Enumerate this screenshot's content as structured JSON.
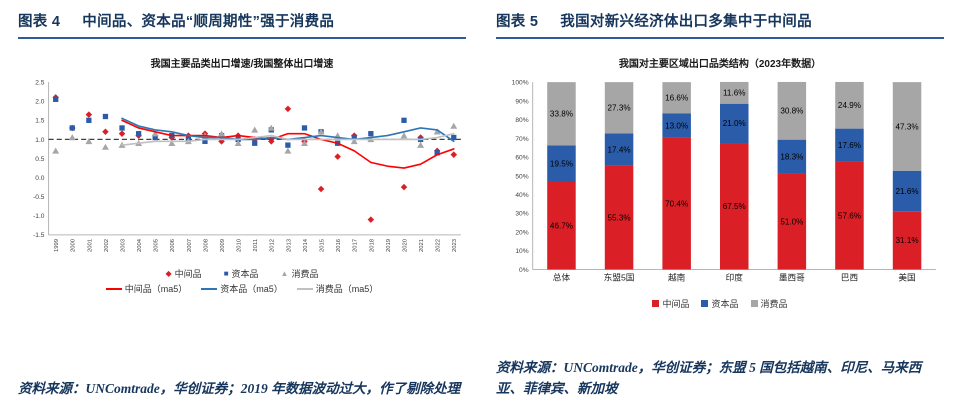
{
  "theme": {
    "header_color": "#16365c",
    "rule_color": "#2f5b9d",
    "source_color": "#17365d",
    "axis_color": "#b7b7b7",
    "reference_line_color": "#404040"
  },
  "figure4": {
    "label": "图表 4",
    "title": "中间品、资本品“顺周期性”强于消费品",
    "source": "资料来源：UNComtrade，华创证券；2019 年数据波动过大，作了剔除处理"
  },
  "figure5": {
    "label": "图表 5",
    "title": "我国对新兴经济体出口多集中于中间品",
    "source": "资料来源：UNComtrade，华创证券；东盟 5 国包括越南、印尼、马来西亚、菲律宾、新加坡"
  },
  "chart_data": [
    {
      "type": "scatter",
      "title": "我国主要品类出口增速/我国整体出口增速",
      "x": [
        1999,
        2000,
        2001,
        2002,
        2003,
        2004,
        2005,
        2006,
        2007,
        2008,
        2009,
        2010,
        2011,
        2012,
        2013,
        2014,
        2015,
        2016,
        2017,
        2018,
        2019,
        2020,
        2021,
        2022,
        2023
      ],
      "ylim": [
        -1.5,
        2.5
      ],
      "ytick_step": 0.5,
      "reference_line": 1.0,
      "series": [
        {
          "name": "中间品",
          "marker": "diamond",
          "color": "#db1f26",
          "values": [
            2.1,
            1.3,
            1.65,
            1.2,
            1.15,
            1.1,
            1.1,
            1.05,
            1.1,
            1.15,
            0.95,
            1.1,
            1.0,
            0.95,
            1.8,
            0.95,
            -0.3,
            0.55,
            1.1,
            -1.1,
            null,
            -0.25,
            1.05,
            0.7,
            0.6
          ]
        },
        {
          "name": "资本品",
          "marker": "square",
          "color": "#2a5caa",
          "values": [
            2.05,
            1.3,
            1.5,
            1.6,
            1.3,
            1.15,
            1.05,
            1.1,
            1.0,
            0.95,
            1.1,
            1.0,
            0.9,
            1.25,
            0.85,
            1.3,
            1.2,
            0.9,
            1.05,
            1.15,
            null,
            1.5,
            1.0,
            0.65,
            1.05
          ]
        },
        {
          "name": "消费品",
          "marker": "triangle",
          "color": "#a6a6a6",
          "values": [
            0.7,
            1.05,
            0.95,
            0.8,
            0.85,
            0.9,
            1.15,
            0.9,
            0.95,
            1.1,
            1.15,
            0.9,
            1.25,
            1.3,
            0.7,
            0.9,
            1.2,
            1.1,
            0.95,
            1.0,
            null,
            1.1,
            0.85,
            1.2,
            1.35
          ]
        },
        {
          "name": "中间品（ma5）",
          "marker": "line",
          "color": "#ff0000",
          "values": [
            null,
            null,
            null,
            null,
            1.5,
            1.3,
            1.2,
            1.1,
            1.1,
            1.1,
            1.05,
            1.1,
            1.05,
            1.0,
            1.15,
            1.15,
            1.0,
            0.9,
            0.7,
            0.4,
            0.3,
            0.25,
            0.35,
            0.6,
            0.75
          ]
        },
        {
          "name": "资本品（ma5）",
          "marker": "line",
          "color": "#2e75b6",
          "values": [
            null,
            null,
            null,
            null,
            1.55,
            1.35,
            1.25,
            1.2,
            1.1,
            1.05,
            1.05,
            1.0,
            1.0,
            1.05,
            1.0,
            1.05,
            1.1,
            1.05,
            1.0,
            1.05,
            1.1,
            1.2,
            1.3,
            1.25,
            0.95
          ]
        },
        {
          "name": "消费品（ma5）",
          "marker": "line",
          "color": "#c0c0c0",
          "values": [
            null,
            null,
            null,
            null,
            0.85,
            0.9,
            0.95,
            0.95,
            0.95,
            1.0,
            1.0,
            1.0,
            1.05,
            1.1,
            1.0,
            1.0,
            1.0,
            1.0,
            1.0,
            1.0,
            1.0,
            1.0,
            1.0,
            1.05,
            1.15
          ]
        }
      ]
    },
    {
      "type": "stacked-bar",
      "title": "我国对主要区域出口品类结构（2023年数据）",
      "categories": [
        "总体",
        "东盟5国",
        "越南",
        "印度",
        "墨西哥",
        "巴西",
        "美国"
      ],
      "ylim": [
        0,
        100
      ],
      "ytick_step": 10,
      "series": [
        {
          "name": "中间品",
          "color": "#db1f26",
          "values": [
            46.7,
            55.3,
            70.4,
            67.5,
            51.0,
            57.6,
            31.1
          ]
        },
        {
          "name": "资本品",
          "color": "#2a5caa",
          "values": [
            19.5,
            17.4,
            13.0,
            21.0,
            18.3,
            17.6,
            21.6
          ]
        },
        {
          "name": "消费品",
          "color": "#a6a6a6",
          "values": [
            33.8,
            27.3,
            16.6,
            11.6,
            30.8,
            24.9,
            47.3
          ]
        }
      ]
    }
  ]
}
